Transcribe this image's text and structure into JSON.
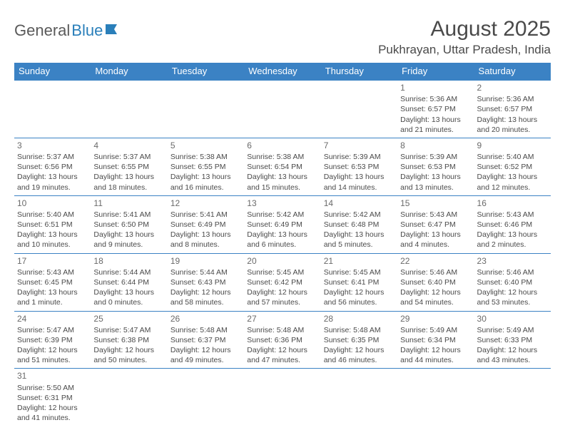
{
  "logo": {
    "part1": "General",
    "part2": "Blue"
  },
  "title": "August 2025",
  "location": "Pukhrayan, Uttar Pradesh, India",
  "colors": {
    "header_bg": "#3b82c4",
    "header_text": "#ffffff",
    "cell_border": "#3b82c4",
    "text": "#4a4a4a",
    "logo_gray": "#5a5a5a",
    "logo_blue": "#2a7fba"
  },
  "weekdays": [
    "Sunday",
    "Monday",
    "Tuesday",
    "Wednesday",
    "Thursday",
    "Friday",
    "Saturday"
  ],
  "weeks": [
    [
      null,
      null,
      null,
      null,
      null,
      {
        "num": "1",
        "sunrise": "Sunrise: 5:36 AM",
        "sunset": "Sunset: 6:57 PM",
        "daylight": "Daylight: 13 hours and 21 minutes."
      },
      {
        "num": "2",
        "sunrise": "Sunrise: 5:36 AM",
        "sunset": "Sunset: 6:57 PM",
        "daylight": "Daylight: 13 hours and 20 minutes."
      }
    ],
    [
      {
        "num": "3",
        "sunrise": "Sunrise: 5:37 AM",
        "sunset": "Sunset: 6:56 PM",
        "daylight": "Daylight: 13 hours and 19 minutes."
      },
      {
        "num": "4",
        "sunrise": "Sunrise: 5:37 AM",
        "sunset": "Sunset: 6:55 PM",
        "daylight": "Daylight: 13 hours and 18 minutes."
      },
      {
        "num": "5",
        "sunrise": "Sunrise: 5:38 AM",
        "sunset": "Sunset: 6:55 PM",
        "daylight": "Daylight: 13 hours and 16 minutes."
      },
      {
        "num": "6",
        "sunrise": "Sunrise: 5:38 AM",
        "sunset": "Sunset: 6:54 PM",
        "daylight": "Daylight: 13 hours and 15 minutes."
      },
      {
        "num": "7",
        "sunrise": "Sunrise: 5:39 AM",
        "sunset": "Sunset: 6:53 PM",
        "daylight": "Daylight: 13 hours and 14 minutes."
      },
      {
        "num": "8",
        "sunrise": "Sunrise: 5:39 AM",
        "sunset": "Sunset: 6:53 PM",
        "daylight": "Daylight: 13 hours and 13 minutes."
      },
      {
        "num": "9",
        "sunrise": "Sunrise: 5:40 AM",
        "sunset": "Sunset: 6:52 PM",
        "daylight": "Daylight: 13 hours and 12 minutes."
      }
    ],
    [
      {
        "num": "10",
        "sunrise": "Sunrise: 5:40 AM",
        "sunset": "Sunset: 6:51 PM",
        "daylight": "Daylight: 13 hours and 10 minutes."
      },
      {
        "num": "11",
        "sunrise": "Sunrise: 5:41 AM",
        "sunset": "Sunset: 6:50 PM",
        "daylight": "Daylight: 13 hours and 9 minutes."
      },
      {
        "num": "12",
        "sunrise": "Sunrise: 5:41 AM",
        "sunset": "Sunset: 6:49 PM",
        "daylight": "Daylight: 13 hours and 8 minutes."
      },
      {
        "num": "13",
        "sunrise": "Sunrise: 5:42 AM",
        "sunset": "Sunset: 6:49 PM",
        "daylight": "Daylight: 13 hours and 6 minutes."
      },
      {
        "num": "14",
        "sunrise": "Sunrise: 5:42 AM",
        "sunset": "Sunset: 6:48 PM",
        "daylight": "Daylight: 13 hours and 5 minutes."
      },
      {
        "num": "15",
        "sunrise": "Sunrise: 5:43 AM",
        "sunset": "Sunset: 6:47 PM",
        "daylight": "Daylight: 13 hours and 4 minutes."
      },
      {
        "num": "16",
        "sunrise": "Sunrise: 5:43 AM",
        "sunset": "Sunset: 6:46 PM",
        "daylight": "Daylight: 13 hours and 2 minutes."
      }
    ],
    [
      {
        "num": "17",
        "sunrise": "Sunrise: 5:43 AM",
        "sunset": "Sunset: 6:45 PM",
        "daylight": "Daylight: 13 hours and 1 minute."
      },
      {
        "num": "18",
        "sunrise": "Sunrise: 5:44 AM",
        "sunset": "Sunset: 6:44 PM",
        "daylight": "Daylight: 13 hours and 0 minutes."
      },
      {
        "num": "19",
        "sunrise": "Sunrise: 5:44 AM",
        "sunset": "Sunset: 6:43 PM",
        "daylight": "Daylight: 12 hours and 58 minutes."
      },
      {
        "num": "20",
        "sunrise": "Sunrise: 5:45 AM",
        "sunset": "Sunset: 6:42 PM",
        "daylight": "Daylight: 12 hours and 57 minutes."
      },
      {
        "num": "21",
        "sunrise": "Sunrise: 5:45 AM",
        "sunset": "Sunset: 6:41 PM",
        "daylight": "Daylight: 12 hours and 56 minutes."
      },
      {
        "num": "22",
        "sunrise": "Sunrise: 5:46 AM",
        "sunset": "Sunset: 6:40 PM",
        "daylight": "Daylight: 12 hours and 54 minutes."
      },
      {
        "num": "23",
        "sunrise": "Sunrise: 5:46 AM",
        "sunset": "Sunset: 6:40 PM",
        "daylight": "Daylight: 12 hours and 53 minutes."
      }
    ],
    [
      {
        "num": "24",
        "sunrise": "Sunrise: 5:47 AM",
        "sunset": "Sunset: 6:39 PM",
        "daylight": "Daylight: 12 hours and 51 minutes."
      },
      {
        "num": "25",
        "sunrise": "Sunrise: 5:47 AM",
        "sunset": "Sunset: 6:38 PM",
        "daylight": "Daylight: 12 hours and 50 minutes."
      },
      {
        "num": "26",
        "sunrise": "Sunrise: 5:48 AM",
        "sunset": "Sunset: 6:37 PM",
        "daylight": "Daylight: 12 hours and 49 minutes."
      },
      {
        "num": "27",
        "sunrise": "Sunrise: 5:48 AM",
        "sunset": "Sunset: 6:36 PM",
        "daylight": "Daylight: 12 hours and 47 minutes."
      },
      {
        "num": "28",
        "sunrise": "Sunrise: 5:48 AM",
        "sunset": "Sunset: 6:35 PM",
        "daylight": "Daylight: 12 hours and 46 minutes."
      },
      {
        "num": "29",
        "sunrise": "Sunrise: 5:49 AM",
        "sunset": "Sunset: 6:34 PM",
        "daylight": "Daylight: 12 hours and 44 minutes."
      },
      {
        "num": "30",
        "sunrise": "Sunrise: 5:49 AM",
        "sunset": "Sunset: 6:33 PM",
        "daylight": "Daylight: 12 hours and 43 minutes."
      }
    ],
    [
      {
        "num": "31",
        "sunrise": "Sunrise: 5:50 AM",
        "sunset": "Sunset: 6:31 PM",
        "daylight": "Daylight: 12 hours and 41 minutes."
      },
      null,
      null,
      null,
      null,
      null,
      null
    ]
  ]
}
